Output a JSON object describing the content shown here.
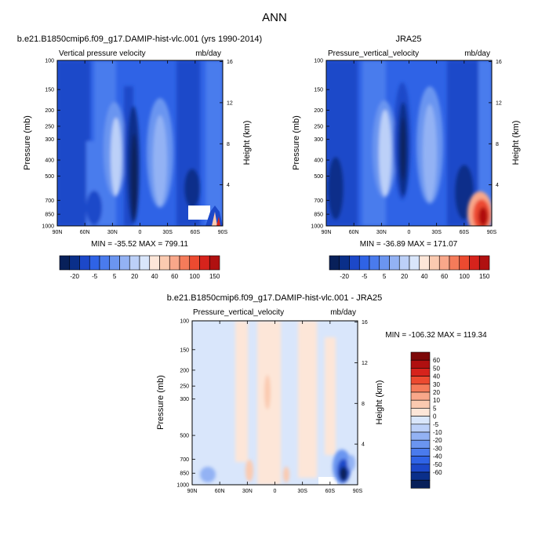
{
  "figure_title": "ANN",
  "colors": {
    "blues": [
      "#08205a",
      "#0a2f8a",
      "#1c48c9",
      "#2f63e6",
      "#4a7bed",
      "#6b95f0",
      "#93b2f4",
      "#bcd0f8",
      "#d9e6fb"
    ],
    "reds": [
      "#fde6d8",
      "#fbcab0",
      "#f9a78a",
      "#f57b5a",
      "#ec4a30",
      "#d6231c",
      "#b01010",
      "#7d0808"
    ],
    "neutral": "#ffffff"
  },
  "chart_data": [
    {
      "id": "model",
      "type": "heatmap",
      "title": "b.e21.B1850cmip6.f09_g17.DAMIP-hist-vlc.001 (yrs 1990-2014)",
      "variable_label": "Vertical pressure velocity",
      "units": "mb/day",
      "xlabel": "",
      "ylabel": "Pressure (mb)",
      "right_label": "Height (km)",
      "x_ticks": [
        "90N",
        "60N",
        "30N",
        "0",
        "30S",
        "60S",
        "90S"
      ],
      "y_ticks": [
        "100",
        "150",
        "200",
        "250",
        "300",
        "400",
        "500",
        "700",
        "850",
        "1000"
      ],
      "height_ticks": [
        "16",
        "12",
        "8",
        "4"
      ],
      "stats": "MIN = -35.52   MAX = 799.11",
      "min": -35.52,
      "max": 799.11,
      "colorbar_labels": [
        "-20",
        "-5",
        "5",
        "20",
        "40",
        "60",
        "100",
        "150"
      ]
    },
    {
      "id": "obs",
      "type": "heatmap",
      "title": "JRA25",
      "variable_label": "Pressure_vertical_velocity",
      "units": "mb/day",
      "xlabel": "",
      "ylabel": "Pressure (mb)",
      "right_label": "Height (km)",
      "x_ticks": [
        "90N",
        "60N",
        "30N",
        "0",
        "30S",
        "60S",
        "90S"
      ],
      "y_ticks": [
        "100",
        "150",
        "200",
        "250",
        "300",
        "400",
        "500",
        "700",
        "850",
        "1000"
      ],
      "height_ticks": [
        "16",
        "12",
        "8",
        "4"
      ],
      "stats": "MIN = -36.89   MAX = 171.07",
      "min": -36.89,
      "max": 171.07,
      "colorbar_labels": [
        "-20",
        "-5",
        "5",
        "20",
        "40",
        "60",
        "100",
        "150"
      ]
    },
    {
      "id": "diff",
      "type": "heatmap",
      "title": "b.e21.B1850cmip6.f09_g17.DAMIP-hist-vlc.001 - JRA25",
      "variable_label": "Pressure_vertical_velocity",
      "units": "mb/day",
      "xlabel": "",
      "ylabel": "Pressure (mb)",
      "right_label": "Height (km)",
      "x_ticks": [
        "90N",
        "60N",
        "30N",
        "0",
        "30S",
        "60S",
        "90S"
      ],
      "y_ticks": [
        "100",
        "150",
        "200",
        "250",
        "300",
        "500",
        "700",
        "850",
        "1000"
      ],
      "height_ticks": [
        "16",
        "12",
        "8",
        "4"
      ],
      "stats": "MIN = -106.32   MAX = 119.34",
      "min": -106.32,
      "max": 119.34,
      "colorbar_labels": [
        "60",
        "50",
        "40",
        "30",
        "20",
        "10",
        "5",
        "0",
        "-5",
        "-10",
        "-20",
        "-30",
        "-40",
        "-50",
        "-60"
      ]
    }
  ]
}
